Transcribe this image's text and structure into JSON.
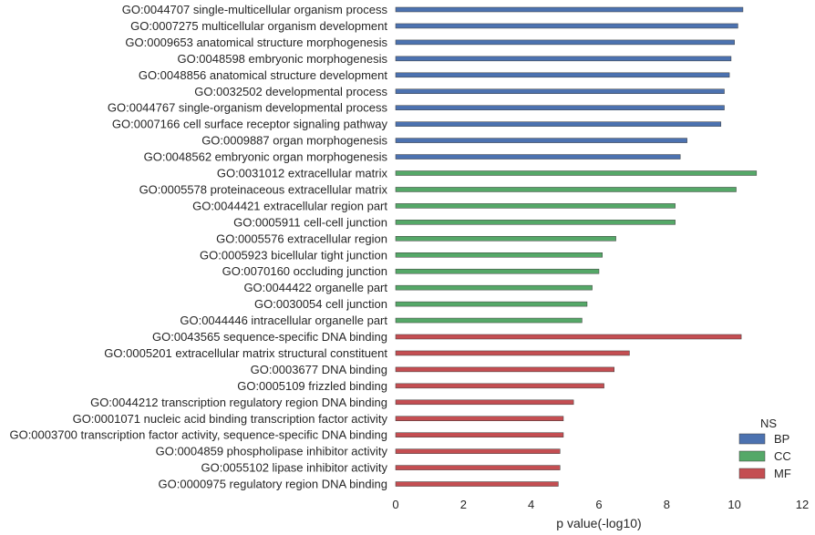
{
  "chart_data": {
    "type": "bar",
    "orientation": "horizontal",
    "xlabel": "p value(-log10)",
    "ylabel": "",
    "xlim": [
      0,
      12
    ],
    "xticks": [
      "0",
      "2",
      "4",
      "6",
      "8",
      "10",
      "12"
    ],
    "grid": false,
    "legend": {
      "title": "NS",
      "placement": "lower-right",
      "entries": [
        {
          "name": "BP",
          "color": "#4c72b0"
        },
        {
          "name": "CC",
          "color": "#55a868"
        },
        {
          "name": "MF",
          "color": "#c44e52"
        }
      ]
    },
    "categories": [
      "GO:0044707 single-multicellular organism process",
      "GO:0007275 multicellular organism development",
      "GO:0009653 anatomical structure morphogenesis",
      "GO:0048598 embryonic morphogenesis",
      "GO:0048856 anatomical structure development",
      "GO:0032502 developmental process",
      "GO:0044767 single-organism developmental process",
      "GO:0007166 cell surface receptor signaling pathway",
      "GO:0009887 organ morphogenesis",
      "GO:0048562 embryonic organ morphogenesis",
      "GO:0031012 extracellular matrix",
      "GO:0005578 proteinaceous extracellular matrix",
      "GO:0044421 extracellular region part",
      "GO:0005911 cell-cell junction",
      "GO:0005576 extracellular region",
      "GO:0005923 bicellular tight junction",
      "GO:0070160 occluding junction",
      "GO:0044422 organelle part",
      "GO:0030054 cell junction",
      "GO:0044446 intracellular organelle part",
      "GO:0043565 sequence-specific DNA binding",
      "GO:0005201 extracellular matrix structural constituent",
      "GO:0003677 DNA binding",
      "GO:0005109 frizzled binding",
      "GO:0044212 transcription regulatory region DNA binding",
      "GO:0001071 nucleic acid binding transcription factor activity",
      "GO:0003700 transcription factor activity, sequence-specific DNA binding",
      "GO:0004859 phospholipase inhibitor activity",
      "GO:0055102 lipase inhibitor activity",
      "GO:0000975 regulatory region DNA binding"
    ],
    "groups": [
      "BP",
      "BP",
      "BP",
      "BP",
      "BP",
      "BP",
      "BP",
      "BP",
      "BP",
      "BP",
      "CC",
      "CC",
      "CC",
      "CC",
      "CC",
      "CC",
      "CC",
      "CC",
      "CC",
      "CC",
      "MF",
      "MF",
      "MF",
      "MF",
      "MF",
      "MF",
      "MF",
      "MF",
      "MF",
      "MF"
    ],
    "values": [
      10.25,
      10.1,
      10.0,
      9.9,
      9.85,
      9.7,
      9.7,
      9.6,
      8.6,
      8.4,
      10.65,
      10.05,
      8.25,
      8.25,
      6.5,
      6.1,
      6.0,
      5.8,
      5.65,
      5.5,
      10.2,
      6.9,
      6.45,
      6.15,
      5.25,
      4.95,
      4.95,
      4.85,
      4.85,
      4.8
    ]
  }
}
